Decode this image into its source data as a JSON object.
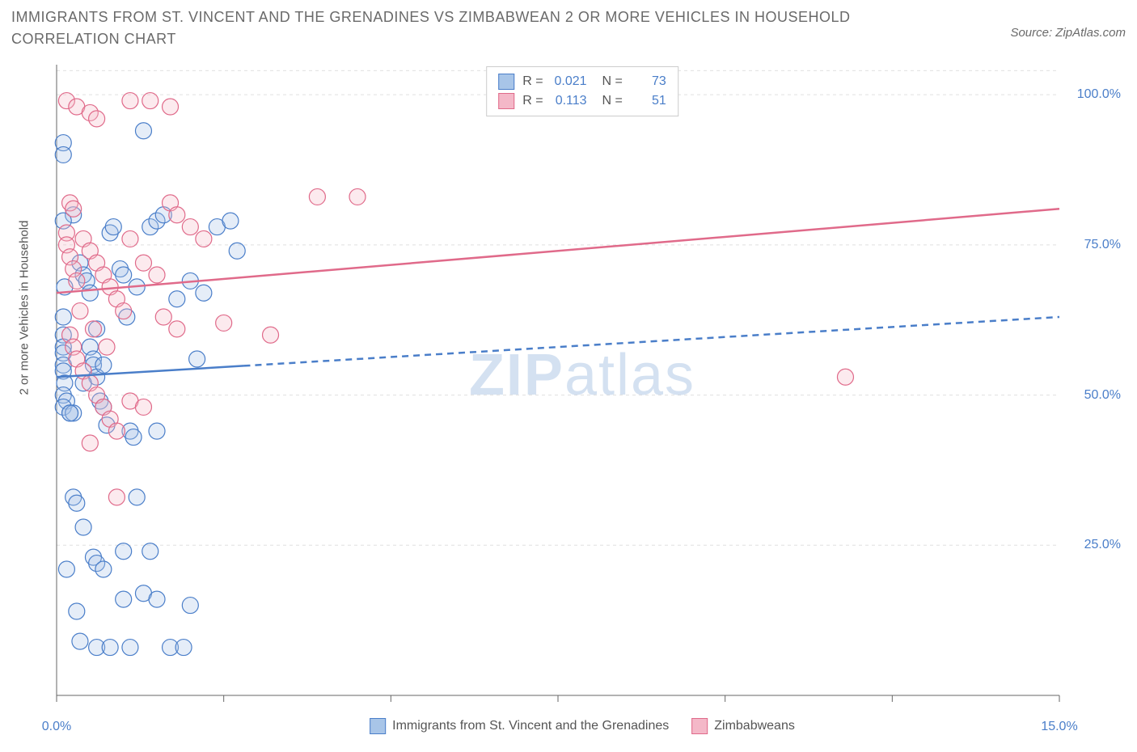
{
  "title": "IMMIGRANTS FROM ST. VINCENT AND THE GRENADINES VS ZIMBABWEAN 2 OR MORE VEHICLES IN HOUSEHOLD CORRELATION CHART",
  "source": "Source: ZipAtlas.com",
  "watermark": {
    "bold": "ZIP",
    "rest": "atlas"
  },
  "chart": {
    "type": "scatter",
    "background_color": "#ffffff",
    "grid_color": "#e0e0e0",
    "axis_color": "#666666",
    "label_color": "#4a7ec9",
    "text_color": "#555555",
    "y_axis_title": "2 or more Vehicles in Household",
    "xlim": [
      0,
      15
    ],
    "ylim": [
      0,
      105
    ],
    "x_ticks": [
      0,
      2.5,
      5,
      7.5,
      10,
      12.5,
      15
    ],
    "x_labels": {
      "0": "0.0%",
      "15": "15.0%"
    },
    "y_ticks": [
      25,
      50,
      75,
      100
    ],
    "y_labels": {
      "25": "25.0%",
      "50": "50.0%",
      "75": "75.0%",
      "100": "100.0%"
    },
    "marker_radius": 10,
    "series": [
      {
        "name": "Immigrants from St. Vincent and the Grenadines",
        "fill": "#a8c5e8",
        "stroke": "#4a7ec9",
        "R": "0.021",
        "N": "73",
        "trend": {
          "y_start": 53,
          "y_end": 63,
          "solid_until_x": 2.8
        },
        "points": [
          [
            0.1,
            92
          ],
          [
            0.1,
            90
          ],
          [
            0.25,
            80
          ],
          [
            0.1,
            79
          ],
          [
            0.12,
            68
          ],
          [
            0.1,
            63
          ],
          [
            0.1,
            60
          ],
          [
            0.1,
            58
          ],
          [
            0.1,
            57
          ],
          [
            0.1,
            55
          ],
          [
            0.1,
            54
          ],
          [
            0.12,
            52
          ],
          [
            0.1,
            50
          ],
          [
            0.15,
            49
          ],
          [
            0.1,
            48
          ],
          [
            0.2,
            47
          ],
          [
            0.25,
            47
          ],
          [
            0.35,
            72
          ],
          [
            0.4,
            70
          ],
          [
            0.45,
            69
          ],
          [
            0.5,
            67
          ],
          [
            0.5,
            58
          ],
          [
            0.55,
            56
          ],
          [
            0.55,
            55
          ],
          [
            0.6,
            53
          ],
          [
            0.6,
            61
          ],
          [
            0.65,
            49
          ],
          [
            0.7,
            48
          ],
          [
            0.75,
            45
          ],
          [
            0.8,
            77
          ],
          [
            0.85,
            78
          ],
          [
            0.95,
            71
          ],
          [
            1.0,
            70
          ],
          [
            1.05,
            63
          ],
          [
            1.1,
            44
          ],
          [
            1.15,
            43
          ],
          [
            1.2,
            68
          ],
          [
            1.3,
            94
          ],
          [
            1.4,
            78
          ],
          [
            1.5,
            79
          ],
          [
            1.6,
            80
          ],
          [
            1.8,
            66
          ],
          [
            2.0,
            69
          ],
          [
            2.1,
            56
          ],
          [
            2.2,
            67
          ],
          [
            2.4,
            78
          ],
          [
            2.6,
            79
          ],
          [
            2.7,
            74
          ],
          [
            0.25,
            33
          ],
          [
            0.3,
            32
          ],
          [
            0.4,
            28
          ],
          [
            0.55,
            23
          ],
          [
            0.6,
            22
          ],
          [
            0.7,
            21
          ],
          [
            1.0,
            24
          ],
          [
            1.2,
            33
          ],
          [
            1.4,
            24
          ],
          [
            0.3,
            14
          ],
          [
            0.35,
            9
          ],
          [
            0.6,
            8
          ],
          [
            0.8,
            8
          ],
          [
            1.0,
            16
          ],
          [
            1.1,
            8
          ],
          [
            1.3,
            17
          ],
          [
            1.5,
            16
          ],
          [
            1.7,
            8
          ],
          [
            1.9,
            8
          ],
          [
            2.0,
            15
          ],
          [
            0.15,
            21
          ],
          [
            0.2,
            47
          ],
          [
            0.4,
            52
          ],
          [
            0.7,
            55
          ],
          [
            1.5,
            44
          ]
        ]
      },
      {
        "name": "Zimbabweans",
        "fill": "#f4b8c8",
        "stroke": "#e06a8a",
        "R": "0.113",
        "N": "51",
        "trend": {
          "y_start": 67,
          "y_end": 81,
          "solid_until_x": 15
        },
        "points": [
          [
            0.15,
            99
          ],
          [
            0.3,
            98
          ],
          [
            0.5,
            97
          ],
          [
            0.6,
            96
          ],
          [
            1.1,
            99
          ],
          [
            1.4,
            99
          ],
          [
            1.7,
            98
          ],
          [
            0.2,
            82
          ],
          [
            0.25,
            81
          ],
          [
            0.15,
            77
          ],
          [
            0.15,
            75
          ],
          [
            0.2,
            73
          ],
          [
            0.25,
            71
          ],
          [
            0.3,
            69
          ],
          [
            0.4,
            76
          ],
          [
            0.5,
            74
          ],
          [
            0.6,
            72
          ],
          [
            0.7,
            70
          ],
          [
            0.8,
            68
          ],
          [
            0.9,
            66
          ],
          [
            1.0,
            64
          ],
          [
            1.1,
            76
          ],
          [
            1.3,
            72
          ],
          [
            1.5,
            70
          ],
          [
            1.7,
            82
          ],
          [
            1.8,
            80
          ],
          [
            2.0,
            78
          ],
          [
            2.2,
            76
          ],
          [
            0.2,
            60
          ],
          [
            0.25,
            58
          ],
          [
            0.3,
            56
          ],
          [
            0.4,
            54
          ],
          [
            0.5,
            52
          ],
          [
            0.6,
            50
          ],
          [
            0.7,
            48
          ],
          [
            0.8,
            46
          ],
          [
            0.9,
            44
          ],
          [
            1.1,
            49
          ],
          [
            1.6,
            63
          ],
          [
            1.8,
            61
          ],
          [
            0.5,
            42
          ],
          [
            0.9,
            33
          ],
          [
            1.3,
            48
          ],
          [
            2.5,
            62
          ],
          [
            3.2,
            60
          ],
          [
            3.9,
            83
          ],
          [
            4.5,
            83
          ],
          [
            11.8,
            53
          ],
          [
            0.35,
            64
          ],
          [
            0.55,
            61
          ],
          [
            0.75,
            58
          ]
        ]
      }
    ],
    "legend_bottom": [
      {
        "label": "Immigrants from St. Vincent and the Grenadines",
        "fill": "#a8c5e8",
        "stroke": "#4a7ec9"
      },
      {
        "label": "Zimbabweans",
        "fill": "#f4b8c8",
        "stroke": "#e06a8a"
      }
    ]
  }
}
